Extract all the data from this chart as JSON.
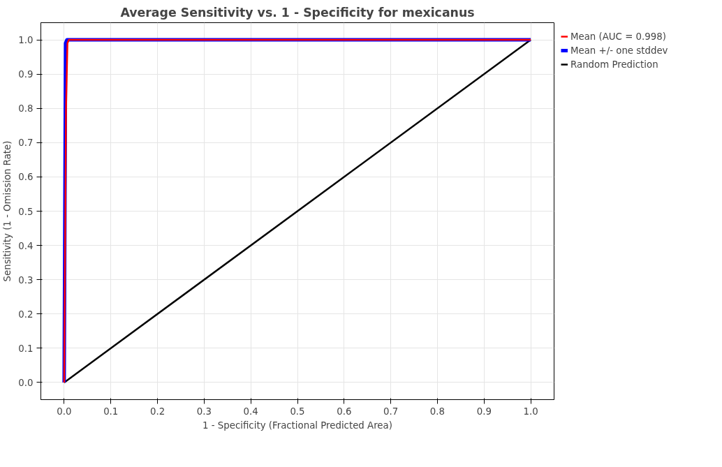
{
  "chart_data": {
    "type": "line",
    "title": "Average Sensitivity vs. 1 - Specificity for mexicanus",
    "xlabel": "1 - Specificity (Fractional Predicted Area)",
    "ylabel": "Sensitivity (1 - Omission Rate)",
    "series": [
      {
        "name": "Mean (AUC = 0.998)",
        "color": "#ff0000",
        "x": [
          0,
          0.004,
          0.007,
          0.01,
          1
        ],
        "values": [
          0,
          0.8,
          0.99,
          1,
          1
        ]
      },
      {
        "name": "Mean +/- one stddev",
        "color": "#0000ff",
        "x": [
          0,
          0.003,
          0.006,
          1
        ],
        "values": [
          0,
          0.99,
          1,
          1
        ]
      },
      {
        "name": "Random Prediction",
        "color": "#000000",
        "x": [
          0,
          1
        ],
        "values": [
          0,
          1
        ]
      }
    ],
    "xlim": [
      -0.05,
      1.05
    ],
    "ylim": [
      -0.05,
      1.05
    ],
    "xticks": [
      {
        "value": 0,
        "label": "0.0"
      },
      0.1,
      0.2,
      0.3,
      0.4,
      0.5,
      0.6,
      0.7,
      0.8,
      0.9,
      {
        "value": 1,
        "label": "1.0"
      }
    ],
    "yticks": [
      {
        "value": 0,
        "label": "0.0"
      },
      0.1,
      0.2,
      0.3,
      0.4,
      0.5,
      0.6,
      0.7,
      0.8,
      0.9,
      {
        "value": 1,
        "label": "1.0"
      }
    ],
    "grid": true,
    "legend": "top right",
    "line_style": "solid",
    "marker": "none"
  }
}
